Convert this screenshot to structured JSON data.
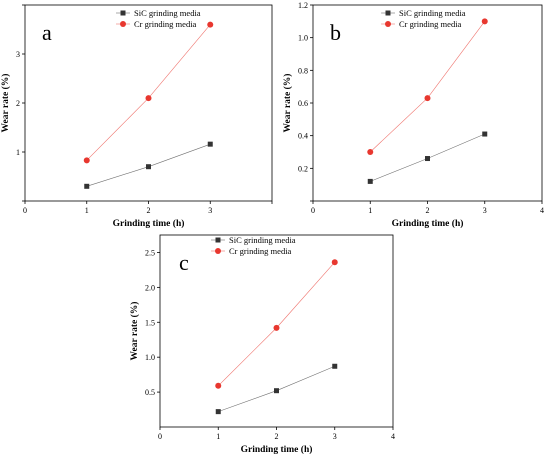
{
  "chart_data": [
    {
      "type": "line",
      "panel_label": "a",
      "x": [
        1,
        2,
        3
      ],
      "xlim": [
        0,
        4
      ],
      "ylim": [
        0,
        4
      ],
      "xticks": [
        0,
        1,
        2,
        3,
        4
      ],
      "xtick_labels": [
        "0",
        "1",
        "2",
        "3",
        ""
      ],
      "yticks": [
        0,
        1,
        2,
        3,
        4
      ],
      "ytick_labels": [
        "",
        "1",
        "2",
        "3",
        ""
      ],
      "xlabel": "Grinding time (h)",
      "ylabel": "Wear rate (%)",
      "legend_position": "top-center",
      "grid": false,
      "series": [
        {
          "name": "SiC grinding media",
          "values": [
            0.3,
            0.7,
            1.16
          ],
          "color": "#333333",
          "marker": "square"
        },
        {
          "name": "Cr grinding media",
          "values": [
            0.83,
            2.1,
            3.6
          ],
          "color": "#e8372f",
          "marker": "circle"
        }
      ]
    },
    {
      "type": "line",
      "panel_label": "b",
      "x": [
        1,
        2,
        3
      ],
      "xlim": [
        0,
        4
      ],
      "ylim": [
        0,
        1.2
      ],
      "xticks": [
        0,
        1,
        2,
        3,
        4
      ],
      "xtick_labels": [
        "0",
        "1",
        "2",
        "3",
        "4"
      ],
      "yticks": [
        0,
        0.2,
        0.4,
        0.6,
        0.8,
        1.0,
        1.2
      ],
      "ytick_labels": [
        "",
        "0.2",
        "0.4",
        "0.6",
        "0.8",
        "1.0",
        "1.2"
      ],
      "xlabel": "Grinding time (h)",
      "ylabel": "Wear rate (%)",
      "legend_position": "top-center",
      "grid": false,
      "series": [
        {
          "name": "SiC grinding media",
          "values": [
            0.12,
            0.26,
            0.41
          ],
          "color": "#333333",
          "marker": "square"
        },
        {
          "name": "Cr grinding media",
          "values": [
            0.3,
            0.63,
            1.1
          ],
          "color": "#e8372f",
          "marker": "circle"
        }
      ]
    },
    {
      "type": "line",
      "panel_label": "c",
      "x": [
        1,
        2,
        3
      ],
      "xlim": [
        0,
        4
      ],
      "ylim": [
        0,
        2.75
      ],
      "xticks": [
        0,
        1,
        2,
        3,
        4
      ],
      "xtick_labels": [
        "0",
        "1",
        "2",
        "3",
        "4"
      ],
      "yticks": [
        0.5,
        1.0,
        1.5,
        2.0,
        2.5
      ],
      "ytick_labels": [
        "0.5",
        "1.0",
        "1.5",
        "2.0",
        "2.5"
      ],
      "xlabel": "Grinding time (h)",
      "ylabel": "Wear rate (%)",
      "legend_position": "top-center",
      "grid": false,
      "series": [
        {
          "name": "SiC grinding media",
          "values": [
            0.22,
            0.52,
            0.87
          ],
          "color": "#333333",
          "marker": "square"
        },
        {
          "name": "Cr grinding media",
          "values": [
            0.59,
            1.42,
            2.36
          ],
          "color": "#e8372f",
          "marker": "circle"
        }
      ]
    }
  ]
}
